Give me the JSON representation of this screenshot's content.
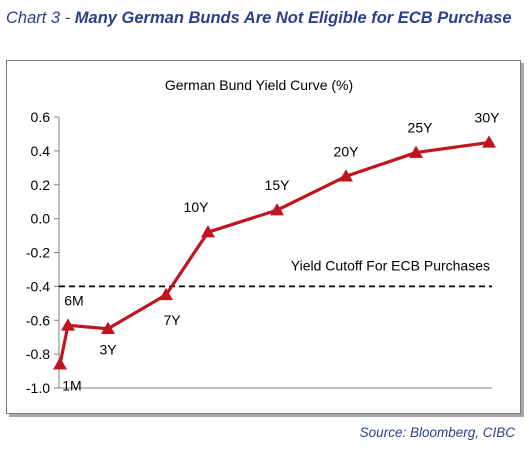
{
  "header": {
    "prefix": "Chart 3 - ",
    "title": "Many German Bunds Are Not Eligible for ECB Purchase"
  },
  "source": "Source:  Bloomberg, CIBC",
  "colors": {
    "line": "#c0141e",
    "heading": "#2b3f8c",
    "axis": "#808080"
  },
  "chart_data": {
    "type": "line",
    "title": "German Bund Yield Curve (%)",
    "xlabel": "",
    "ylabel": "",
    "ylim": [
      -1.0,
      0.6
    ],
    "yticks": [
      "0.6",
      "0.4",
      "0.2",
      "0.0",
      "-0.2",
      "-0.4",
      "-0.6",
      "-0.8",
      "-1.0"
    ],
    "yticks_values": [
      0.6,
      0.4,
      0.2,
      0.0,
      -0.2,
      -0.4,
      -0.6,
      -0.8,
      -1.0
    ],
    "grid": false,
    "series": [
      {
        "points": [
          {
            "label": "1M",
            "x": 0.083,
            "y": -0.86
          },
          {
            "label": "6M",
            "x": 0.5,
            "y": -0.63
          },
          {
            "label": "3Y",
            "x": 3,
            "y": -0.65
          },
          {
            "label": "7Y",
            "x": 7,
            "y": -0.45
          },
          {
            "label": "10Y",
            "x": 10,
            "y": -0.08
          },
          {
            "label": "15Y",
            "x": 15,
            "y": 0.05
          },
          {
            "label": "20Y",
            "x": 20,
            "y": 0.25
          },
          {
            "label": "25Y",
            "x": 25,
            "y": 0.39
          },
          {
            "label": "30Y",
            "x": 30,
            "y": 0.45
          }
        ]
      }
    ],
    "reference_line": {
      "y": -0.4,
      "label": "Yield Cutoff For ECB Purchases",
      "style": "dashed"
    }
  }
}
